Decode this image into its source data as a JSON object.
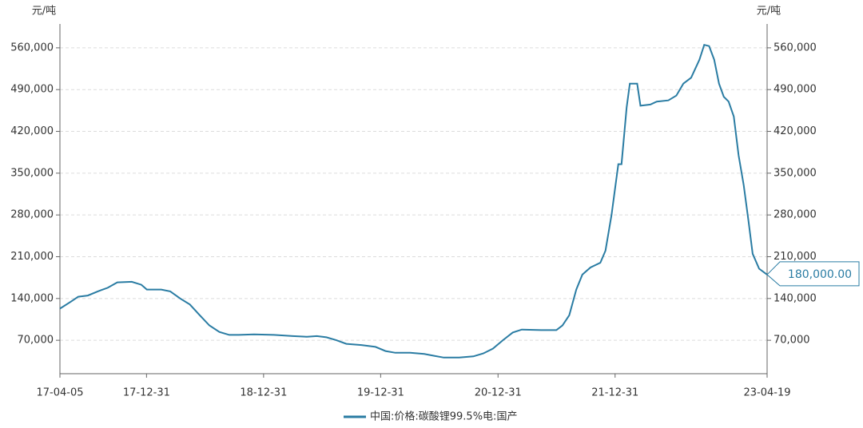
{
  "chart_data": {
    "type": "line",
    "y_label": "元/吨",
    "y2_label": "元/吨",
    "x": [
      "17-04-05",
      "17-05-10",
      "17-06-01",
      "17-07-01",
      "17-08-01",
      "17-09-01",
      "17-10-01",
      "17-11-15",
      "17-12-15",
      "18-01-01",
      "18-02-15",
      "18-03-15",
      "18-04-15",
      "18-05-15",
      "18-06-15",
      "18-07-15",
      "18-08-15",
      "18-09-15",
      "18-10-15",
      "18-12-01",
      "19-02-01",
      "19-04-01",
      "19-05-15",
      "19-06-15",
      "19-07-15",
      "19-08-15",
      "19-09-15",
      "19-11-01",
      "19-12-15",
      "20-01-15",
      "20-02-15",
      "20-04-01",
      "20-05-15",
      "20-06-15",
      "20-07-15",
      "20-09-01",
      "20-10-15",
      "20-11-15",
      "20-12-15",
      "21-01-15",
      "21-02-15",
      "21-03-15",
      "21-05-15",
      "21-07-01",
      "21-07-20",
      "21-08-10",
      "21-09-01",
      "21-09-20",
      "21-10-15",
      "21-11-15",
      "21-12-01",
      "21-12-20",
      "22-01-10",
      "22-01-20",
      "22-02-05",
      "22-02-15",
      "22-03-10",
      "22-03-20",
      "22-04-20",
      "22-05-10",
      "22-06-15",
      "22-07-10",
      "22-08-01",
      "22-08-25",
      "22-09-20",
      "22-10-05",
      "22-10-20",
      "22-11-05",
      "22-11-20",
      "22-12-05",
      "22-12-20",
      "23-01-05",
      "23-01-20",
      "23-02-05",
      "23-02-20",
      "23-03-05",
      "23-03-25",
      "23-04-19"
    ],
    "series": [
      {
        "name": "中国:价格:碳酸锂99.5%电:国产",
        "color": "#2a7ca3",
        "values": [
          123000,
          135000,
          143000,
          145000,
          152000,
          158000,
          167000,
          168000,
          163000,
          155000,
          155000,
          152000,
          140000,
          130000,
          112000,
          95000,
          84000,
          79000,
          79000,
          80000,
          79000,
          77000,
          76000,
          77000,
          75000,
          70000,
          64000,
          62000,
          59000,
          52000,
          49000,
          49000,
          47000,
          44000,
          41000,
          41000,
          43000,
          48000,
          56000,
          70000,
          83000,
          88000,
          87000,
          87000,
          95000,
          112000,
          155000,
          180000,
          192000,
          200000,
          220000,
          280000,
          365000,
          365000,
          460000,
          500000,
          500000,
          463000,
          465000,
          470000,
          472000,
          480000,
          500000,
          510000,
          540000,
          565000,
          563000,
          540000,
          500000,
          478000,
          470000,
          445000,
          380000,
          330000,
          270000,
          215000,
          190000,
          180000
        ],
        "value_labels": [
          null,
          null,
          null,
          null,
          null,
          null,
          null,
          null,
          null,
          null,
          null,
          null,
          null,
          null,
          null,
          null,
          null,
          null,
          null,
          null,
          null,
          null,
          null,
          null,
          null,
          null,
          null,
          null,
          null,
          null,
          null,
          null,
          null,
          null,
          null,
          null,
          null,
          null,
          null,
          null,
          null,
          null,
          null,
          null,
          null,
          null,
          null,
          null,
          null,
          null,
          null,
          null,
          null,
          null,
          null,
          null,
          null,
          null,
          null,
          null,
          null,
          null,
          null,
          null,
          null,
          null,
          null,
          null,
          null,
          null,
          null,
          null,
          null,
          null,
          null,
          null,
          null,
          "180,000.00"
        ]
      }
    ],
    "xlim": [
      "17-04-05",
      "23-04-19"
    ],
    "xticks": [
      "17-04-05",
      "17-12-31",
      "18-12-31",
      "19-12-31",
      "20-12-31",
      "21-12-31",
      "23-04-19"
    ],
    "ylim": [
      14000,
      600000
    ],
    "yticks": [
      {
        "value": 70000,
        "label": "70,000"
      },
      {
        "value": 140000,
        "label": "140,000"
      },
      {
        "value": 210000,
        "label": "210,000"
      },
      {
        "value": 280000,
        "label": "280,000"
      },
      {
        "value": 350000,
        "label": "350,000"
      },
      {
        "value": 420000,
        "label": "420,000"
      },
      {
        "value": 490000,
        "label": "490,000"
      },
      {
        "value": 560000,
        "label": "560,000"
      }
    ],
    "y2lim": [
      14000,
      600000
    ],
    "y2ticks": [
      {
        "value": 70000,
        "label": "70,000"
      },
      {
        "value": 140000,
        "label": "140,000"
      },
      {
        "value": 210000,
        "label": "210,000"
      },
      {
        "value": 280000,
        "label": "280,000"
      },
      {
        "value": 350000,
        "label": "350,000"
      },
      {
        "value": 420000,
        "label": "420,000"
      },
      {
        "value": 490000,
        "label": "490,000"
      },
      {
        "value": 560000,
        "label": "560,000"
      }
    ],
    "grid": true,
    "legend": "bottom"
  }
}
